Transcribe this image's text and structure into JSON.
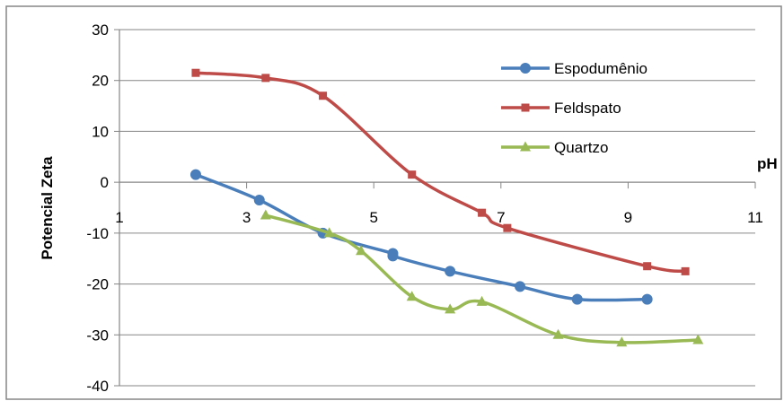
{
  "chart_data": {
    "type": "line",
    "title": "",
    "xlabel": "pH",
    "ylabel": "Potencial Zeta",
    "xlim": [
      1,
      11
    ],
    "ylim": [
      -40,
      30
    ],
    "x_ticks": [
      1,
      3,
      5,
      7,
      9,
      11
    ],
    "y_ticks": [
      30,
      20,
      10,
      0,
      -10,
      -20,
      -30,
      -40
    ],
    "x_tick_labels": [
      "1",
      "3",
      "5",
      "7",
      "9",
      "11"
    ],
    "y_tick_labels": [
      "30",
      "20",
      "10",
      "0",
      "-10",
      "-20",
      "-30",
      "-40"
    ],
    "grid": "horizontal",
    "legend_position": "top-right",
    "series": [
      {
        "name": "Espodumênio",
        "color": "#4a7ebb",
        "marker": "circle",
        "x": [
          2.2,
          3.2,
          4.2,
          5.3,
          5.3,
          6.2,
          7.3,
          8.2,
          9.3
        ],
        "y": [
          1.5,
          -3.5,
          -10,
          -14,
          -14.5,
          -17.5,
          -20.5,
          -23,
          -23
        ]
      },
      {
        "name": "Feldspato",
        "color": "#be4b48",
        "marker": "square",
        "x": [
          2.2,
          3.3,
          4.2,
          5.6,
          6.7,
          7.1,
          9.3,
          9.9
        ],
        "y": [
          21.5,
          20.5,
          17,
          1.5,
          -6,
          -9,
          -16.5,
          -17.5
        ]
      },
      {
        "name": "Quartzo",
        "color": "#98b954",
        "marker": "triangle",
        "x": [
          3.3,
          4.3,
          4.8,
          5.6,
          6.2,
          6.7,
          7.9,
          8.9,
          10.1
        ],
        "y": [
          -6.5,
          -10,
          -13.5,
          -22.5,
          -25,
          -23.5,
          -30,
          -31.5,
          -31
        ]
      }
    ]
  }
}
